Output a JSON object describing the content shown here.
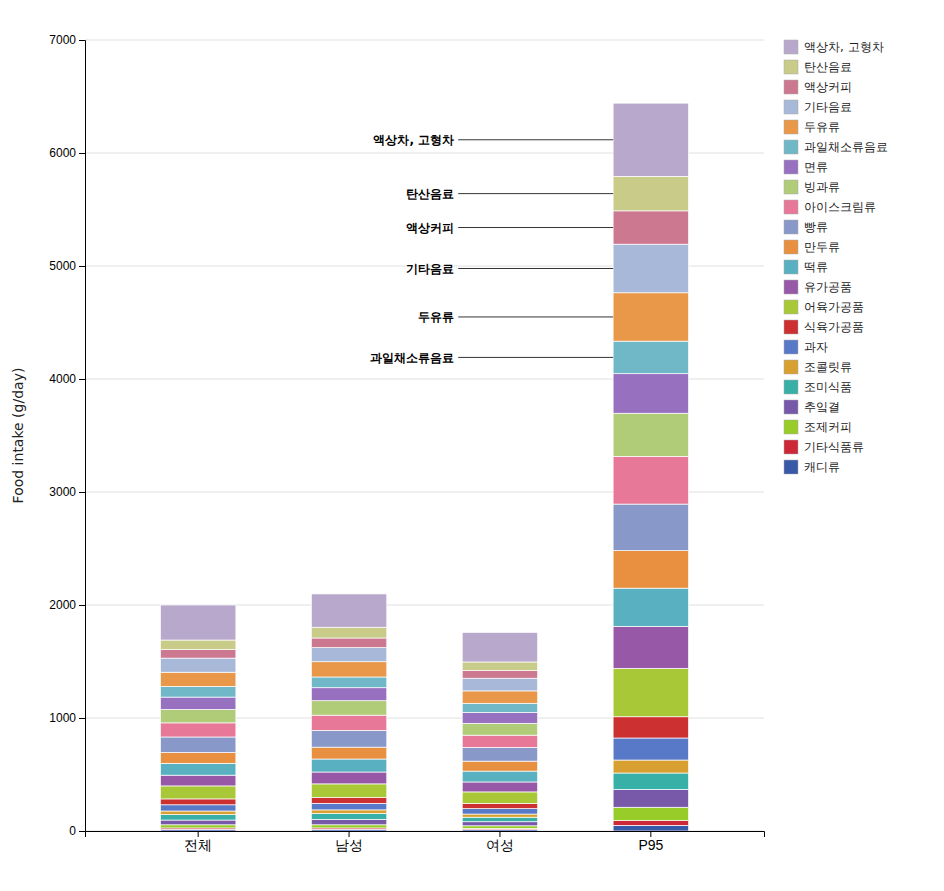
{
  "chart_data": {
    "type": "bar",
    "stacked": true,
    "grid": true,
    "legend": "right",
    "ylabel": "Food intake (g/day)",
    "categories": [
      "전체",
      "남성",
      "여성",
      "P95"
    ],
    "ylim": [
      0,
      7000
    ],
    "yticks": [
      0,
      1000,
      2000,
      3000,
      4000,
      5000,
      6000,
      7000
    ],
    "series": [
      {
        "name": "액상차, 고형차",
        "color": "#b8a8cc",
        "values": [
          310,
          295,
          262,
          648
        ]
      },
      {
        "name": "탄산음료",
        "color": "#c8cc88",
        "values": [
          85,
          95,
          76,
          305
        ]
      },
      {
        "name": "액상커피",
        "color": "#cc7890",
        "values": [
          75,
          85,
          68,
          295
        ]
      },
      {
        "name": "기타음료",
        "color": "#a8b8d8",
        "values": [
          125,
          125,
          112,
          430
        ]
      },
      {
        "name": "두유류",
        "color": "#e89848",
        "values": [
          125,
          135,
          110,
          428
        ]
      },
      {
        "name": "과일채소류음료",
        "color": "#70b8c8",
        "values": [
          95,
          95,
          82,
          288
        ]
      },
      {
        "name": "면류",
        "color": "#9870c0",
        "values": [
          110,
          115,
          95,
          350
        ]
      },
      {
        "name": "빙과류",
        "color": "#b0cc78",
        "values": [
          118,
          128,
          105,
          382
        ]
      },
      {
        "name": "아이스크림류",
        "color": "#e87898",
        "values": [
          125,
          135,
          108,
          422
        ]
      },
      {
        "name": "빵류",
        "color": "#8898c8",
        "values": [
          138,
          148,
          122,
          412
        ]
      },
      {
        "name": "만두류",
        "color": "#e89040",
        "values": [
          95,
          105,
          88,
          332
        ]
      },
      {
        "name": "떡류",
        "color": "#58b0c0",
        "values": [
          105,
          115,
          96,
          338
        ]
      },
      {
        "name": "유가공품",
        "color": "#9858a8",
        "values": [
          95,
          105,
          88,
          372
        ]
      },
      {
        "name": "어육가공품",
        "color": "#a8c838",
        "values": [
          115,
          120,
          102,
          428
        ]
      },
      {
        "name": "식육가공품",
        "color": "#cc3030",
        "values": [
          52,
          52,
          46,
          188
        ]
      },
      {
        "name": "과자",
        "color": "#5878c8",
        "values": [
          55,
          58,
          48,
          195
        ]
      },
      {
        "name": "조콜릿류",
        "color": "#d8a030",
        "values": [
          32,
          32,
          28,
          115
        ]
      },
      {
        "name": "조미식품",
        "color": "#38b0a8",
        "values": [
          48,
          52,
          40,
          145
        ]
      },
      {
        "name": "추잌결",
        "color": "#7858a8",
        "values": [
          42,
          48,
          36,
          158
        ]
      },
      {
        "name": "조제커피",
        "color": "#98cc28",
        "values": [
          28,
          28,
          24,
          118
        ]
      },
      {
        "name": "기타식품류",
        "color": "#cc2838",
        "values": [
          12,
          12,
          10,
          42
        ]
      },
      {
        "name": "캐디류",
        "color": "#3858a8",
        "values": [
          15,
          15,
          12,
          50
        ]
      }
    ],
    "annotations": [
      {
        "text": "과일채소류음료",
        "category": "P95",
        "series": "과일채소류음료"
      },
      {
        "text": "두유류",
        "category": "P95",
        "series": "두유류"
      },
      {
        "text": "기타음료",
        "category": "P95",
        "series": "기타음료"
      },
      {
        "text": "액상커피",
        "category": "P95",
        "series": "액상커피"
      },
      {
        "text": "탄산음료",
        "category": "P95",
        "series": "탄산음료"
      },
      {
        "text": "액상차, 고형차",
        "category": "P95",
        "series": "액상차, 고형차"
      }
    ]
  }
}
